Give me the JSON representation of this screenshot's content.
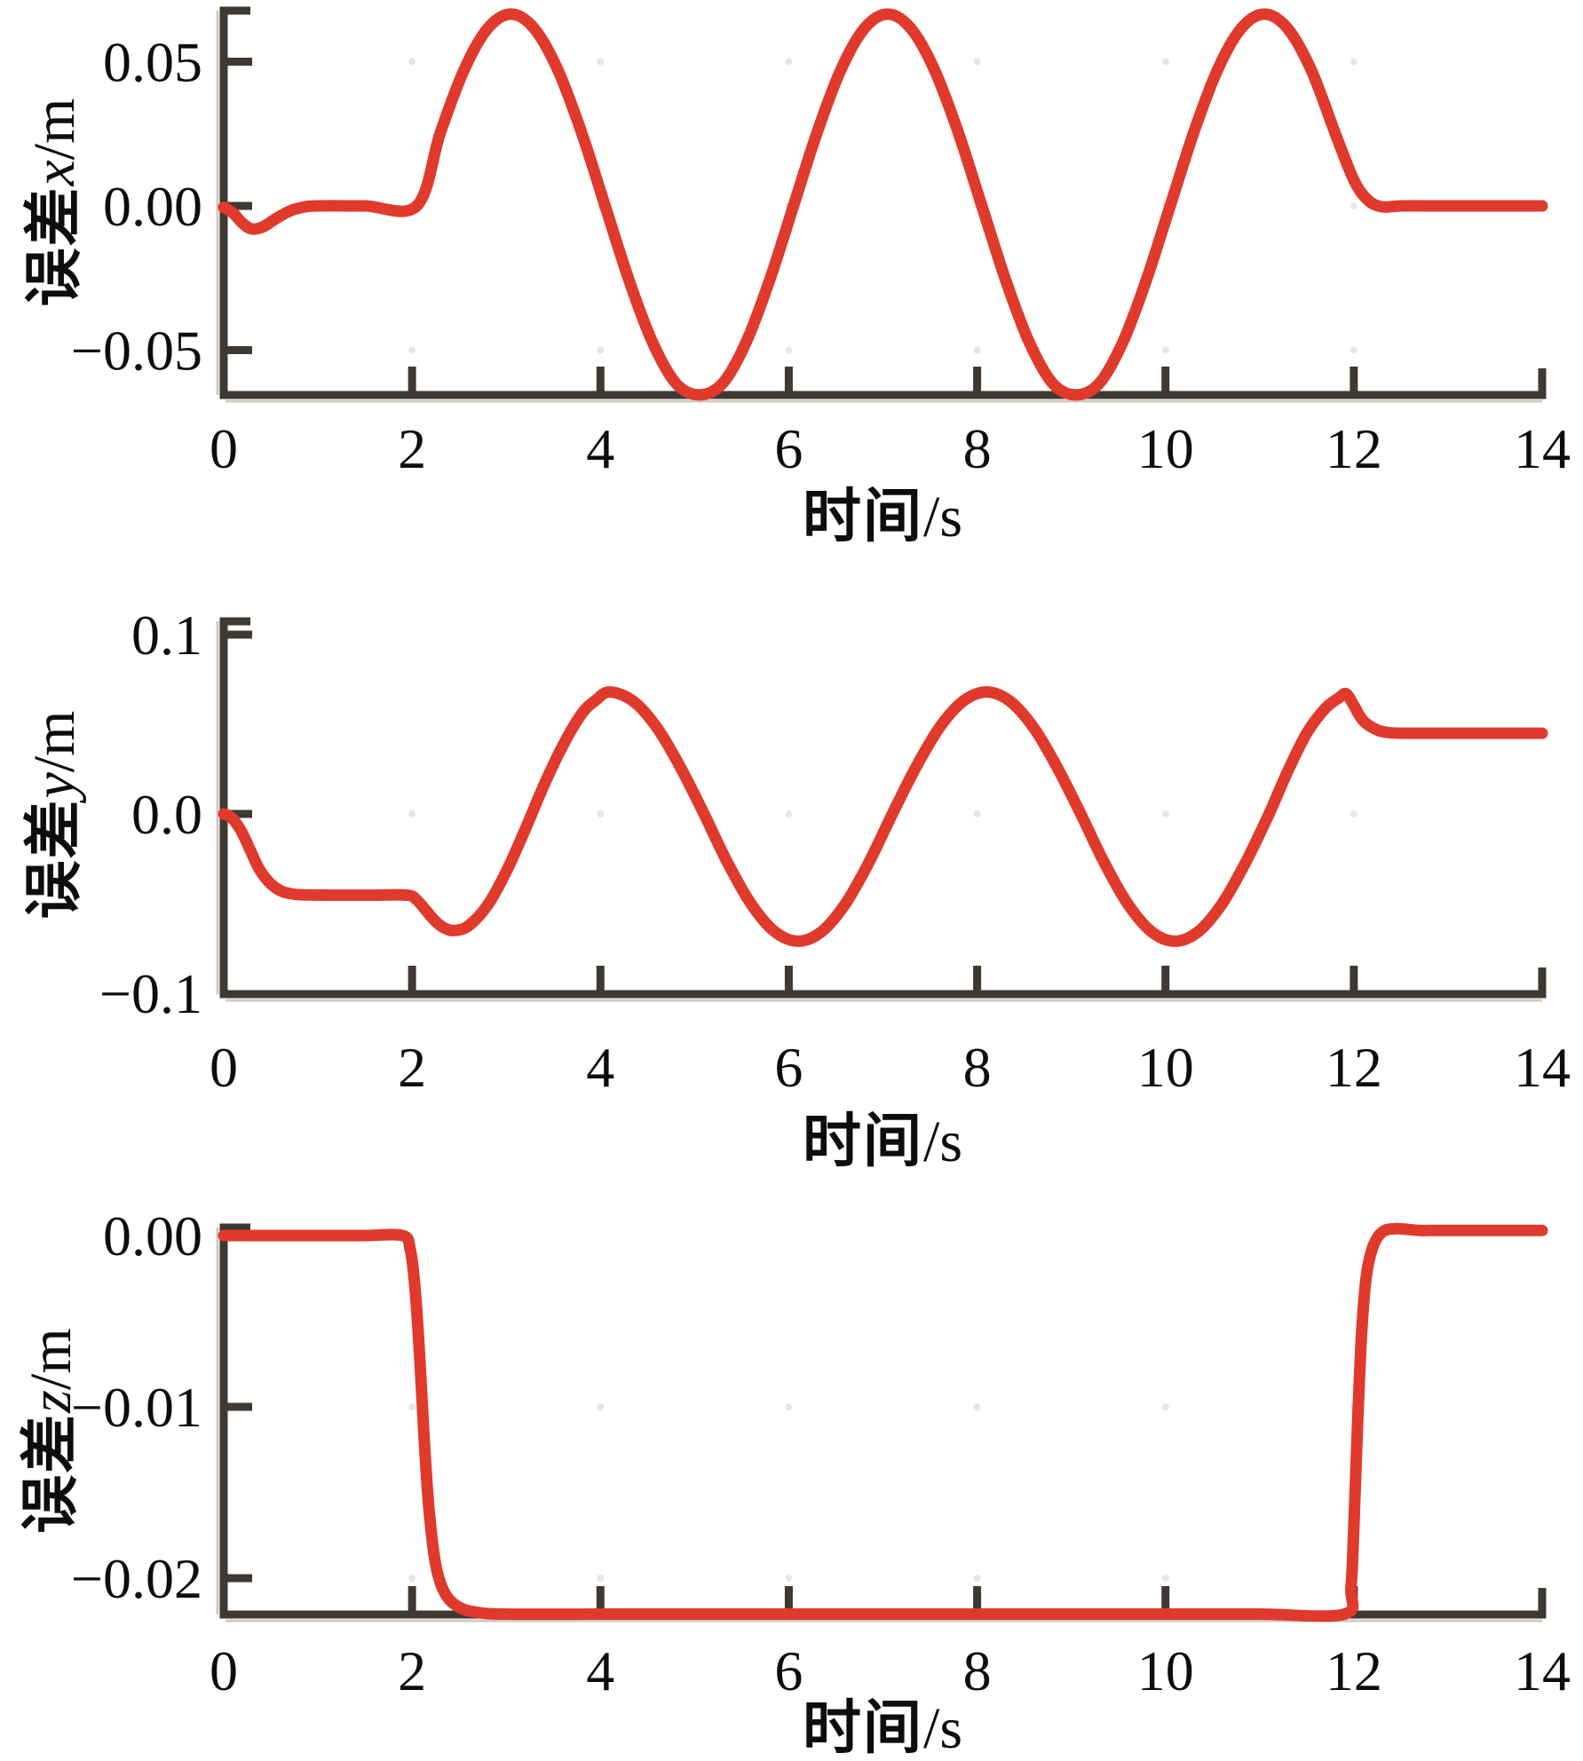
{
  "figure_title": "",
  "chart_data": [
    {
      "type": "line",
      "title": "",
      "xlabel_cjk": "时间",
      "xlabel_rest": "/s",
      "ylabel_cjk": "误差",
      "ylabel_var": "x",
      "ylabel_rest": "/m",
      "xlim": [
        0,
        14
      ],
      "ylim": [
        -0.0655,
        0.0677
      ],
      "grid": "faint-dots",
      "legend": "none",
      "line_color": "#e03a2c",
      "axis_color": "#3f3833",
      "dot_color": "#eae5de",
      "x_ticks": [
        {
          "v": 0,
          "label": "0"
        },
        {
          "v": 2,
          "label": "2"
        },
        {
          "v": 4,
          "label": "4"
        },
        {
          "v": 6,
          "label": "6"
        },
        {
          "v": 8,
          "label": "8"
        },
        {
          "v": 10,
          "label": "10"
        },
        {
          "v": 12,
          "label": "12"
        },
        {
          "v": 14,
          "label": "14"
        }
      ],
      "y_ticks": [
        {
          "v": 0.05,
          "label": "0.05"
        },
        {
          "v": 0.0,
          "label": "0.00"
        },
        {
          "v": -0.05,
          "label": "−0.05"
        }
      ],
      "grid_dot_rows": [
        0.05,
        0.0,
        -0.05
      ],
      "grid_dot_cols": [
        2,
        4,
        6,
        8,
        10,
        12
      ],
      "series": [
        {
          "name": "误差x",
          "points": [
            [
              0,
              -0.0005
            ],
            [
              0.1,
              -0.0025
            ],
            [
              0.2,
              -0.006
            ],
            [
              0.3,
              -0.008
            ],
            [
              0.42,
              -0.0072
            ],
            [
              0.55,
              -0.0045
            ],
            [
              0.7,
              -0.0018
            ],
            [
              0.85,
              -0.0004
            ],
            [
              1,
              0
            ],
            [
              1.5,
              0
            ],
            [
              2.05,
              0
            ],
            [
              2.3,
              0.0254
            ],
            [
              2.55,
              0.047
            ],
            [
              2.8,
              0.0614
            ],
            [
              3.05,
              0.0665
            ],
            [
              3.3,
              0.0614
            ],
            [
              3.55,
              0.047
            ],
            [
              3.8,
              0.0254
            ],
            [
              4.05,
              0
            ],
            [
              4.3,
              -0.0254
            ],
            [
              4.55,
              -0.047
            ],
            [
              4.8,
              -0.0614
            ],
            [
              5.05,
              -0.0655
            ],
            [
              5.3,
              -0.0614
            ],
            [
              5.55,
              -0.047
            ],
            [
              5.8,
              -0.0254
            ],
            [
              6.05,
              0
            ],
            [
              6.3,
              0.0254
            ],
            [
              6.55,
              0.047
            ],
            [
              6.8,
              0.0614
            ],
            [
              7.05,
              0.0665
            ],
            [
              7.3,
              0.0614
            ],
            [
              7.55,
              0.047
            ],
            [
              7.8,
              0.0254
            ],
            [
              8.05,
              0
            ],
            [
              8.3,
              -0.0254
            ],
            [
              8.55,
              -0.047
            ],
            [
              8.8,
              -0.0614
            ],
            [
              9.05,
              -0.0655
            ],
            [
              9.3,
              -0.0614
            ],
            [
              9.55,
              -0.047
            ],
            [
              9.8,
              -0.0254
            ],
            [
              10.05,
              0
            ],
            [
              10.3,
              0.0254
            ],
            [
              10.55,
              0.047
            ],
            [
              10.8,
              0.0614
            ],
            [
              11.05,
              0.0665
            ],
            [
              11.3,
              0.0614
            ],
            [
              11.55,
              0.047
            ],
            [
              11.8,
              0.0254
            ],
            [
              12,
              0.009
            ],
            [
              12.15,
              0.002
            ],
            [
              12.3,
              -0.0003
            ],
            [
              12.5,
              0
            ],
            [
              13,
              0
            ],
            [
              14,
              0
            ]
          ]
        }
      ]
    },
    {
      "type": "line",
      "title": "",
      "xlabel_cjk": "时间",
      "xlabel_rest": "/s",
      "ylabel_cjk": "误差",
      "ylabel_var": "y",
      "ylabel_rest": "/m",
      "xlim": [
        0,
        14
      ],
      "ylim": [
        -0.1005,
        0.107
      ],
      "grid": "faint-dots",
      "legend": "none",
      "line_color": "#e03a2c",
      "axis_color": "#3f3833",
      "dot_color": "#eae5de",
      "x_ticks": [
        {
          "v": 0,
          "label": "0"
        },
        {
          "v": 2,
          "label": "2"
        },
        {
          "v": 4,
          "label": "4"
        },
        {
          "v": 6,
          "label": "6"
        },
        {
          "v": 8,
          "label": "8"
        },
        {
          "v": 10,
          "label": "10"
        },
        {
          "v": 12,
          "label": "12"
        },
        {
          "v": 14,
          "label": "14"
        }
      ],
      "y_ticks": [
        {
          "v": 0.1,
          "label": "0.1"
        },
        {
          "v": 0.0,
          "label": "0.0"
        },
        {
          "v": -0.1,
          "label": "−0.1"
        }
      ],
      "grid_dot_rows": [
        0.0
      ],
      "grid_dot_cols": [
        2,
        4,
        6,
        8,
        10,
        12
      ],
      "series": [
        {
          "name": "误差y",
          "points": [
            [
              0,
              0
            ],
            [
              0.08,
              -0.002
            ],
            [
              0.18,
              -0.009
            ],
            [
              0.28,
              -0.02
            ],
            [
              0.38,
              -0.031
            ],
            [
              0.5,
              -0.039
            ],
            [
              0.62,
              -0.0432
            ],
            [
              0.75,
              -0.0448
            ],
            [
              0.9,
              -0.0452
            ],
            [
              1.2,
              -0.0453
            ],
            [
              1.6,
              -0.0453
            ],
            [
              1.95,
              -0.0453
            ],
            [
              2.05,
              -0.048
            ],
            [
              2.15,
              -0.054
            ],
            [
              2.25,
              -0.06
            ],
            [
              2.35,
              -0.0638
            ],
            [
              2.45,
              -0.065
            ],
            [
              2.6,
              -0.0624
            ],
            [
              2.8,
              -0.051
            ],
            [
              3,
              -0.0322
            ],
            [
              3.2,
              -0.0088
            ],
            [
              3.4,
              0.016
            ],
            [
              3.6,
              0.038
            ],
            [
              3.8,
              0.0558
            ],
            [
              3.95,
              0.0634
            ],
            [
              4.1,
              0.068
            ],
            [
              4.35,
              0.0628
            ],
            [
              4.6,
              0.0481
            ],
            [
              4.85,
              0.026
            ],
            [
              5.1,
              0
            ],
            [
              5.35,
              -0.0272
            ],
            [
              5.6,
              -0.0502
            ],
            [
              5.85,
              -0.0656
            ],
            [
              6.1,
              -0.071
            ],
            [
              6.35,
              -0.0656
            ],
            [
              6.6,
              -0.0502
            ],
            [
              6.85,
              -0.0272
            ],
            [
              7.1,
              0
            ],
            [
              7.35,
              0.026
            ],
            [
              7.6,
              0.0481
            ],
            [
              7.85,
              0.0628
            ],
            [
              8.1,
              0.068
            ],
            [
              8.35,
              0.0628
            ],
            [
              8.6,
              0.0481
            ],
            [
              8.85,
              0.026
            ],
            [
              9.1,
              0
            ],
            [
              9.35,
              -0.0272
            ],
            [
              9.6,
              -0.0502
            ],
            [
              9.85,
              -0.0656
            ],
            [
              10.1,
              -0.071
            ],
            [
              10.35,
              -0.0656
            ],
            [
              10.6,
              -0.0502
            ],
            [
              10.85,
              -0.0272
            ],
            [
              11.1,
              0
            ],
            [
              11.3,
              0.024
            ],
            [
              11.5,
              0.045
            ],
            [
              11.7,
              0.059
            ],
            [
              11.85,
              0.065
            ],
            [
              11.92,
              0.067
            ],
            [
              12,
              0.0605
            ],
            [
              12.1,
              0.052
            ],
            [
              12.25,
              0.0468
            ],
            [
              12.4,
              0.0452
            ],
            [
              12.6,
              0.045
            ],
            [
              13,
              0.045
            ],
            [
              14,
              0.045
            ]
          ]
        }
      ]
    },
    {
      "type": "line",
      "title": "",
      "xlabel_cjk": "时间",
      "xlabel_rest": "/s",
      "ylabel_cjk": "误差",
      "ylabel_var": "z",
      "ylabel_rest": "/m",
      "xlim": [
        0,
        14
      ],
      "ylim": [
        -0.02212,
        0.00047
      ],
      "grid": "faint-dots",
      "legend": "none",
      "line_color": "#e03a2c",
      "axis_color": "#3f3833",
      "dot_color": "#eae5de",
      "x_ticks": [
        {
          "v": 0,
          "label": "0"
        },
        {
          "v": 2,
          "label": "2"
        },
        {
          "v": 4,
          "label": "4"
        },
        {
          "v": 6,
          "label": "6"
        },
        {
          "v": 8,
          "label": "8"
        },
        {
          "v": 10,
          "label": "10"
        },
        {
          "v": 12,
          "label": "12"
        },
        {
          "v": 14,
          "label": "14"
        }
      ],
      "y_ticks": [
        {
          "v": 0.0,
          "label": "0.00"
        },
        {
          "v": -0.01,
          "label": "−0.01"
        },
        {
          "v": -0.02,
          "label": "−0.02"
        }
      ],
      "grid_dot_rows": [
        -0.01,
        -0.02
      ],
      "grid_dot_cols": [
        2,
        4,
        6,
        8,
        10,
        12
      ],
      "series": [
        {
          "name": "误差z",
          "points": [
            [
              0,
              0
            ],
            [
              0.5,
              0
            ],
            [
              1,
              0
            ],
            [
              1.5,
              0
            ],
            [
              1.9,
              0
            ],
            [
              1.98,
              -0.0008
            ],
            [
              2.03,
              -0.003
            ],
            [
              2.08,
              -0.007
            ],
            [
              2.13,
              -0.012
            ],
            [
              2.18,
              -0.016
            ],
            [
              2.25,
              -0.0192
            ],
            [
              2.35,
              -0.0209
            ],
            [
              2.5,
              -0.0217
            ],
            [
              2.7,
              -0.022
            ],
            [
              3,
              -0.0221
            ],
            [
              4,
              -0.0221
            ],
            [
              5,
              -0.0221
            ],
            [
              6,
              -0.0221
            ],
            [
              7,
              -0.0221
            ],
            [
              8,
              -0.0221
            ],
            [
              9,
              -0.0221
            ],
            [
              10,
              -0.0221
            ],
            [
              11,
              -0.0221
            ],
            [
              11.9,
              -0.0221
            ],
            [
              11.97,
              -0.0205
            ],
            [
              12,
              -0.017
            ],
            [
              12.04,
              -0.011
            ],
            [
              12.08,
              -0.006
            ],
            [
              12.13,
              -0.0025
            ],
            [
              12.2,
              -0.0007
            ],
            [
              12.3,
              0.0002
            ],
            [
              12.45,
              0.0004
            ],
            [
              12.7,
              0.0003
            ],
            [
              13,
              0.0003
            ],
            [
              14,
              0.0003
            ]
          ]
        }
      ]
    }
  ]
}
